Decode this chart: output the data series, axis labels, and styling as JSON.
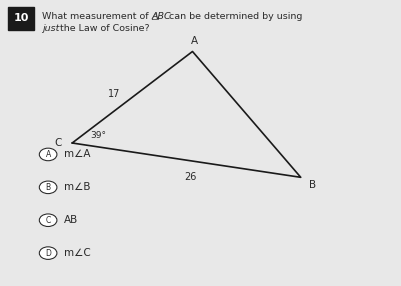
{
  "question_number": "10",
  "question_text_normal1": "What measurement of △",
  "question_text_italic": "ABC",
  "question_text_normal2": " can be determined by using ",
  "question_text_just": "just",
  "question_text_end": " the Law of Cosine?",
  "triangle": {
    "C": [
      0.18,
      0.5
    ],
    "A": [
      0.48,
      0.82
    ],
    "B": [
      0.75,
      0.38
    ]
  },
  "side_CA": "17",
  "side_CB": "26",
  "angle_C": "39°",
  "choices": [
    {
      "label": "A",
      "text": "m∠A"
    },
    {
      "label": "B",
      "text": "m∠B"
    },
    {
      "label": "C",
      "text": "AB"
    },
    {
      "label": "D",
      "text": "m∠C"
    }
  ],
  "bg_color": "#e8e8e8",
  "text_color": "#2a2a2a",
  "number_box_color": "#1a1a1a",
  "number_box_text": "white",
  "triangle_color": "#1a1a1a"
}
